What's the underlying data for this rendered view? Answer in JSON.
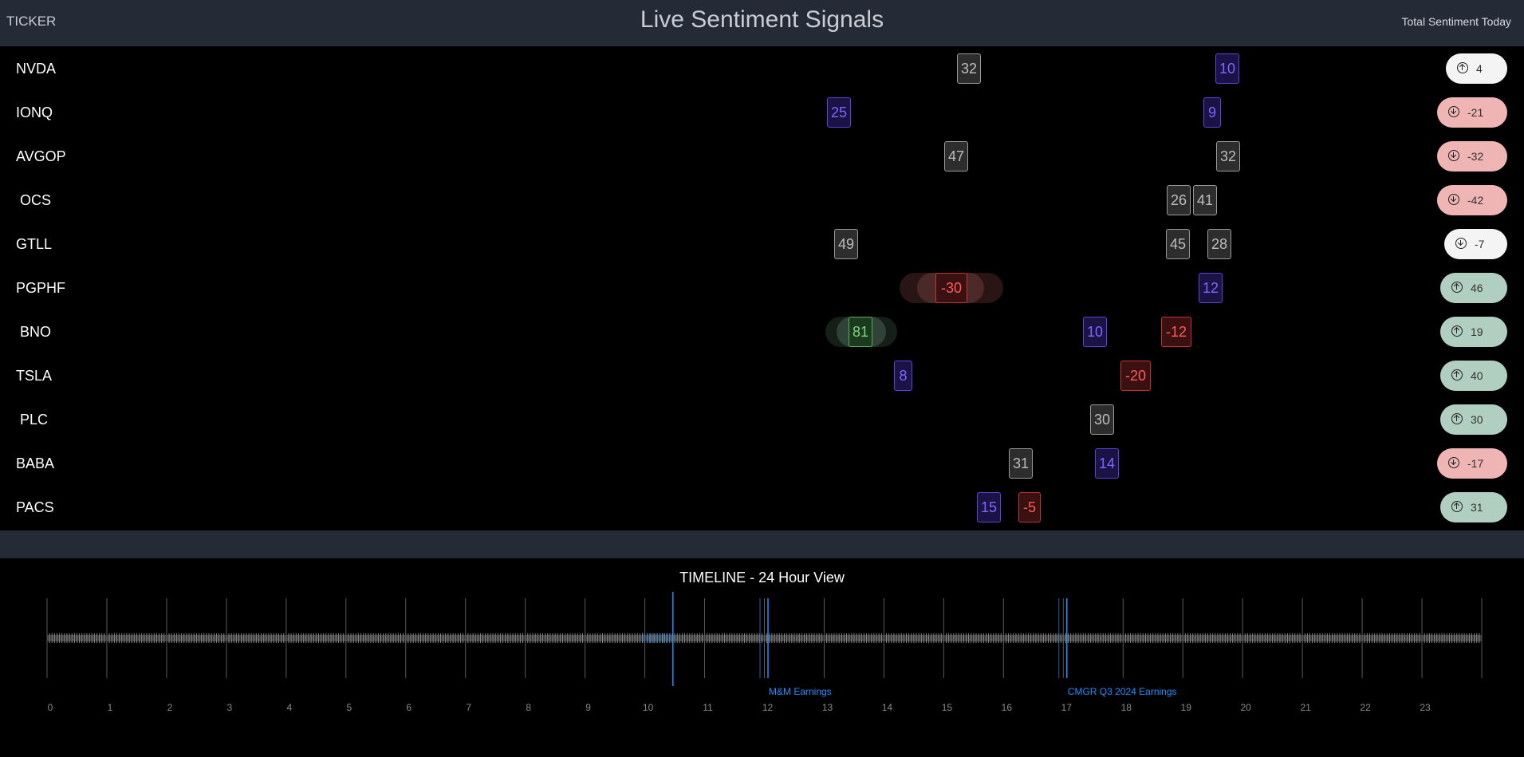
{
  "header": {
    "left_label": "TICKER",
    "title": "Live Sentiment Signals",
    "right_label": "Total Sentiment Today"
  },
  "rows": [
    {
      "ticker": "NVDA",
      "signals": [
        {
          "value": "32",
          "kind": "neutral"
        },
        {
          "value": "10",
          "kind": "purple"
        }
      ],
      "total": "4",
      "direction": "up",
      "pill": "white"
    },
    {
      "ticker": "IONQ",
      "signals": [
        {
          "value": "25",
          "kind": "purple"
        },
        {
          "value": "9",
          "kind": "purple"
        }
      ],
      "total": "-21",
      "direction": "down",
      "pill": "pink"
    },
    {
      "ticker": "AVGOP",
      "signals": [
        {
          "value": "47",
          "kind": "neutral"
        },
        {
          "value": "32",
          "kind": "neutral"
        }
      ],
      "total": "-32",
      "direction": "down",
      "pill": "pink"
    },
    {
      "ticker": "OCS",
      "signals": [
        {
          "value": "26",
          "kind": "neutral"
        },
        {
          "value": "41",
          "kind": "neutral"
        }
      ],
      "total": "-42",
      "direction": "down",
      "pill": "pink"
    },
    {
      "ticker": "GTLL",
      "signals": [
        {
          "value": "49",
          "kind": "neutral"
        },
        {
          "value": "45",
          "kind": "neutral"
        },
        {
          "value": "28",
          "kind": "neutral"
        }
      ],
      "total": "-7",
      "direction": "down",
      "pill": "white"
    },
    {
      "ticker": "PGPHF",
      "signals": [
        {
          "value": "-30",
          "kind": "red"
        },
        {
          "value": "12",
          "kind": "purple"
        }
      ],
      "total": "46",
      "direction": "up",
      "pill": "teal"
    },
    {
      "ticker": "BNO",
      "signals": [
        {
          "value": "81",
          "kind": "green"
        },
        {
          "value": "10",
          "kind": "purple"
        },
        {
          "value": "-12",
          "kind": "red"
        }
      ],
      "total": "19",
      "direction": "up",
      "pill": "teal"
    },
    {
      "ticker": "TSLA",
      "signals": [
        {
          "value": "8",
          "kind": "purple"
        },
        {
          "value": "-20",
          "kind": "red"
        }
      ],
      "total": "40",
      "direction": "up",
      "pill": "teal"
    },
    {
      "ticker": "PLC",
      "signals": [
        {
          "value": "30",
          "kind": "neutral"
        }
      ],
      "total": "30",
      "direction": "up",
      "pill": "teal"
    },
    {
      "ticker": "BABA",
      "signals": [
        {
          "value": "31",
          "kind": "neutral"
        },
        {
          "value": "14",
          "kind": "purple"
        }
      ],
      "total": "-17",
      "direction": "down",
      "pill": "pink"
    },
    {
      "ticker": "PACS",
      "signals": [
        {
          "value": "15",
          "kind": "purple"
        },
        {
          "value": "-5",
          "kind": "red"
        }
      ],
      "total": "31",
      "direction": "up",
      "pill": "teal"
    }
  ],
  "timeline": {
    "title": "TIMELINE - 24 Hour View",
    "hours": [
      "0",
      "1",
      "2",
      "3",
      "4",
      "5",
      "6",
      "7",
      "8",
      "9",
      "10",
      "11",
      "12",
      "13",
      "14",
      "15",
      "16",
      "17",
      "18",
      "19",
      "20",
      "21",
      "22",
      "23"
    ],
    "events": [
      {
        "label": "M&M Earnings"
      },
      {
        "label": "CMGR Q3 2024 Earnings"
      }
    ]
  },
  "colors": {
    "header_bg": "#252a37",
    "accent_blue": "#1e90ff",
    "neutral": "#9a9a9a",
    "purple": "#5b45d6",
    "red": "#c23434",
    "green": "#4fb259"
  }
}
